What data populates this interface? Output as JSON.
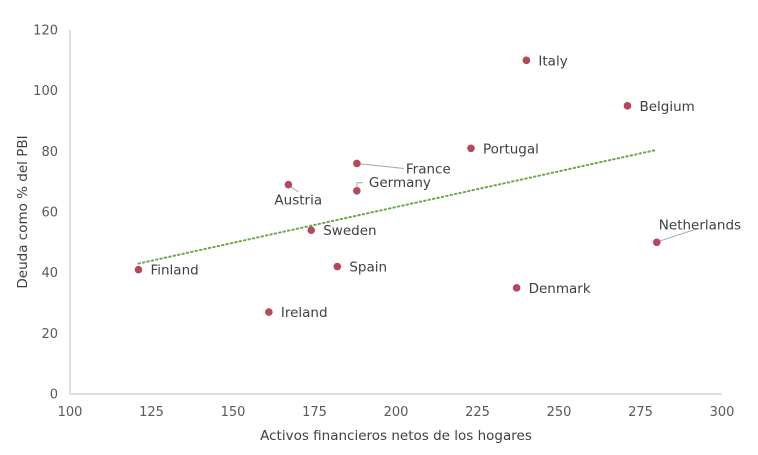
{
  "chart_data": {
    "type": "scatter",
    "xlabel": "Activos financieros netos de los hogares",
    "ylabel": "Deuda como % del PBI",
    "xlim": [
      100,
      300
    ],
    "ylim": [
      0,
      120
    ],
    "x_ticks": [
      100,
      125,
      150,
      175,
      200,
      225,
      250,
      275,
      300
    ],
    "y_ticks": [
      0,
      20,
      40,
      60,
      80,
      100,
      120
    ],
    "grid": false,
    "legend": "none",
    "point_color": "#b5485d",
    "trendline": {
      "style": "dotted",
      "color": "#6aa84f",
      "x": [
        121,
        280
      ],
      "y": [
        43,
        80.5
      ]
    },
    "points": [
      {
        "label": "Italy",
        "x": 240,
        "y": 110
      },
      {
        "label": "Belgium",
        "x": 271,
        "y": 95
      },
      {
        "label": "Portugal",
        "x": 223,
        "y": 81
      },
      {
        "label": "France",
        "x": 188,
        "y": 76
      },
      {
        "label": "Austria",
        "x": 167,
        "y": 69
      },
      {
        "label": "Germany",
        "x": 188,
        "y": 67
      },
      {
        "label": "Sweden",
        "x": 174,
        "y": 54
      },
      {
        "label": "Netherlands",
        "x": 280,
        "y": 50
      },
      {
        "label": "Spain",
        "x": 182,
        "y": 42
      },
      {
        "label": "Finland",
        "x": 121,
        "y": 41
      },
      {
        "label": "Denmark",
        "x": 237,
        "y": 35
      },
      {
        "label": "Ireland",
        "x": 161,
        "y": 27
      }
    ]
  }
}
